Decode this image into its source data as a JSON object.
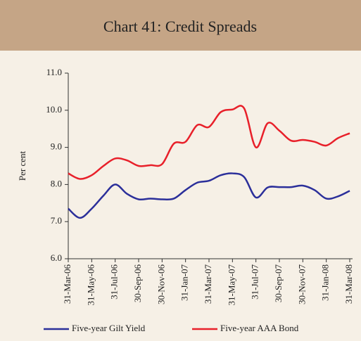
{
  "chart_data": {
    "type": "line",
    "title": "Chart  41: Credit Spreads",
    "y_label": "Per cent",
    "categories": [
      "31-Mar-06",
      null,
      "31-May-06",
      null,
      "31-Jul-06",
      null,
      "30-Sep-06",
      null,
      "30-Nov-06",
      null,
      "31-Jan-07",
      null,
      "31-Mar-07",
      null,
      "31-May-07",
      null,
      "31-Jul-07",
      null,
      "30-Sep-07",
      null,
      "30-Nov-07",
      null,
      "31-Jan-08",
      null,
      "31-Mar-08"
    ],
    "series": [
      {
        "name": "Five-year Gilt Yield",
        "color": "#2b2f9a",
        "values": [
          7.35,
          7.1,
          7.35,
          7.7,
          8.0,
          7.75,
          7.6,
          7.62,
          7.6,
          7.62,
          7.85,
          8.05,
          8.1,
          8.25,
          8.3,
          8.2,
          7.65,
          7.92,
          7.93,
          7.93,
          7.97,
          7.85,
          7.62,
          7.68,
          7.83
        ]
      },
      {
        "name": "Five-year AAA Bond",
        "color": "#e8202a",
        "values": [
          8.3,
          8.15,
          8.25,
          8.5,
          8.7,
          8.65,
          8.5,
          8.52,
          8.55,
          9.1,
          9.15,
          9.6,
          9.55,
          9.95,
          10.02,
          10.05,
          9.0,
          9.65,
          9.45,
          9.18,
          9.2,
          9.15,
          9.05,
          9.25,
          9.38
        ]
      }
    ],
    "ylim": [
      6,
      11
    ],
    "yticks": [
      {
        "value": 6,
        "label": "6.0"
      },
      {
        "value": 7,
        "label": "7.0"
      },
      {
        "value": 8,
        "label": "8.0"
      },
      {
        "value": 9,
        "label": "9.0"
      },
      {
        "value": 10,
        "label": "10.0"
      },
      {
        "value": 11,
        "label": "11.0"
      }
    ],
    "legend": "bottom"
  }
}
